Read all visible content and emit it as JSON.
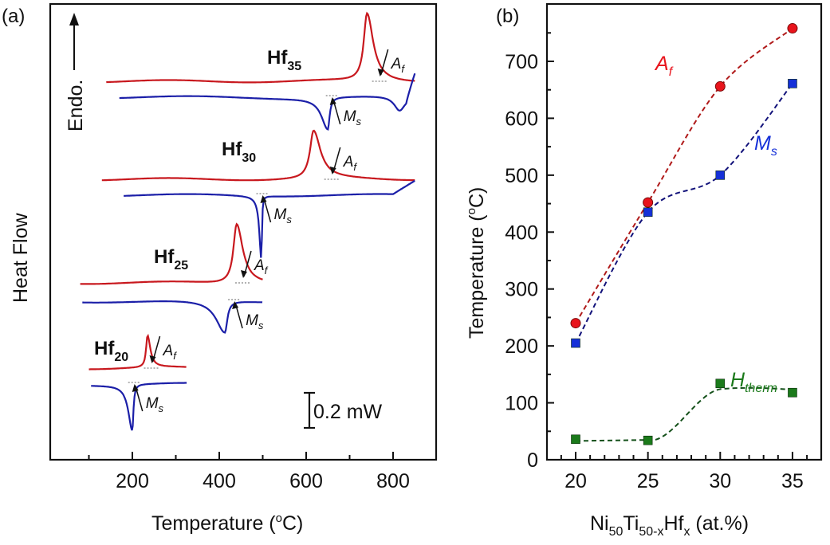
{
  "chart_data": [
    {
      "panel": "(a)",
      "type": "line",
      "title": "",
      "xlabel": "Temperature (°C)",
      "xlabel_main": "Temperature (",
      "xlabel_sup": "o",
      "xlabel_end": "C)",
      "ylabel": "Heat Flow",
      "endo_label": "Endo.",
      "xlim": [
        80,
        900
      ],
      "xticks": [
        200,
        400,
        600,
        800
      ],
      "scale_bar_label": "0.2 mW",
      "grid": false,
      "samples": [
        {
          "name": "Hf",
          "sub": "35",
          "heating_color": "#c8181e",
          "cooling_color": "#1b1fa8",
          "heating_range": [
            140,
            850
          ],
          "cooling_range": [
            170,
            850
          ],
          "Af": 770,
          "Ms": 660,
          "heating_peak": 740,
          "cooling_peak": 650
        },
        {
          "name": "Hf",
          "sub": "30",
          "heating_color": "#c8181e",
          "cooling_color": "#1b1fa8",
          "heating_range": [
            130,
            850
          ],
          "cooling_range": [
            180,
            850
          ],
          "Af": 660,
          "Ms": 500,
          "heating_peak": 617,
          "cooling_peak": 497
        },
        {
          "name": "Hf",
          "sub": "25",
          "heating_color": "#c8181e",
          "cooling_color": "#1b1fa8",
          "heating_range": [
            80,
            500
          ],
          "cooling_range": [
            85,
            500
          ],
          "Af": 455,
          "Ms": 435,
          "heating_peak": 440,
          "cooling_peak": 413
        },
        {
          "name": "Hf",
          "sub": "20",
          "heating_color": "#c8181e",
          "cooling_color": "#1b1fa8",
          "heating_range": [
            100,
            325
          ],
          "cooling_range": [
            105,
            325
          ],
          "Af": 245,
          "Ms": 205,
          "heating_peak": 235,
          "cooling_peak": 200
        }
      ],
      "annotations": {
        "Af": "A",
        "Af_sub": "f",
        "Ms": "M",
        "Ms_sub": "s"
      }
    },
    {
      "panel": "(b)",
      "type": "line",
      "title": "",
      "xlabel": "Ni50Ti50-xHfx (at.%)",
      "xlabel_parts": [
        {
          "t": "Ni",
          "sub": "50"
        },
        {
          "t": "Ti",
          "sub": "50-x"
        },
        {
          "t": "Hf",
          "sub": "x"
        },
        {
          "t": " (at.%)",
          "sub": ""
        }
      ],
      "ylabel": "Temperature (°C)",
      "ylabel_main": "Temperature (",
      "ylabel_sup": "o",
      "ylabel_end": "C)",
      "xlim": [
        18,
        37
      ],
      "ylim": [
        0,
        790
      ],
      "xticks": [
        20,
        25,
        30,
        35
      ],
      "yticks": [
        0,
        100,
        200,
        300,
        400,
        500,
        600,
        700
      ],
      "grid": false,
      "x": [
        20,
        25,
        30,
        35
      ],
      "series": [
        {
          "name": "Af",
          "label": "A",
          "label_sub": "f",
          "marker": "circle",
          "color": "#e8141c",
          "line_color": "#b01a1a",
          "values": [
            240,
            452,
            656,
            758
          ]
        },
        {
          "name": "Ms",
          "label": "M",
          "label_sub": "s",
          "marker": "square",
          "color": "#1530d8",
          "line_color": "#12127a",
          "values": [
            205,
            435,
            500,
            661
          ]
        },
        {
          "name": "Htherm",
          "label": "H",
          "label_sub": "therm",
          "marker": "square",
          "color": "#1b7a1b",
          "line_color": "#14501a",
          "values": [
            36,
            34,
            134,
            118
          ]
        }
      ]
    }
  ]
}
